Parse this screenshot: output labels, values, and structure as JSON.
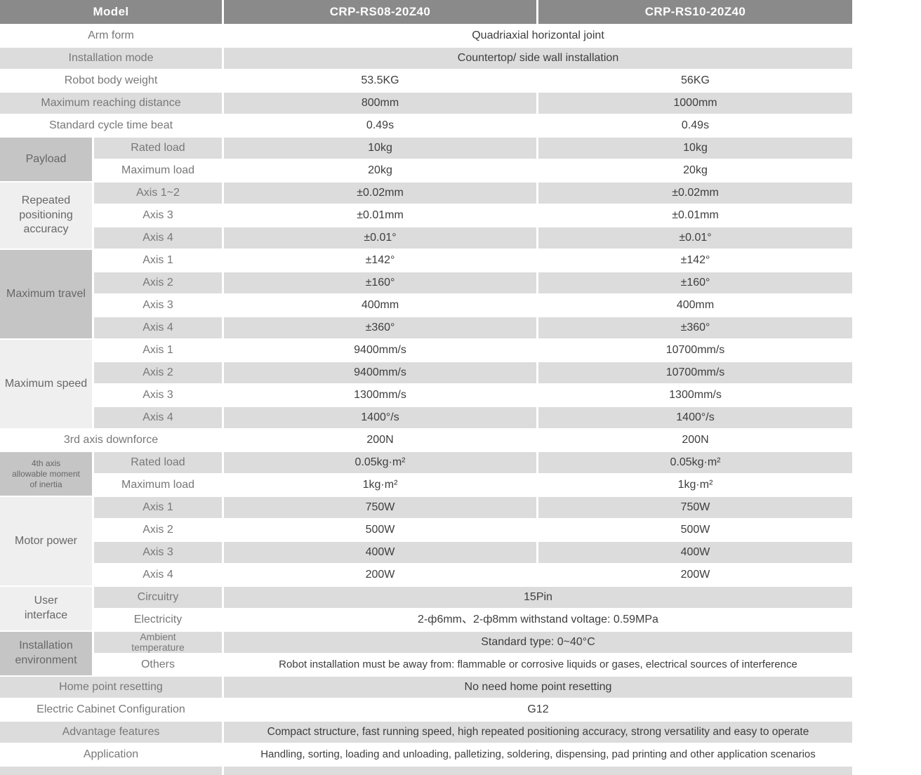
{
  "header": {
    "model": "Model",
    "models": [
      "CRP-RS08-20Z40",
      "CRP-RS10-20Z40"
    ]
  },
  "colors": {
    "header_bg": "#8a8a8a",
    "header_text": "#ffffff",
    "stripe_gray": "#dcdcdc",
    "group_dark": "#c5c5c5",
    "group_light": "#efefef",
    "label_text": "#787878",
    "value_text": "#3e3e3e"
  },
  "groups": [
    {
      "label": "Payload"
    },
    {
      "label": "Repeated positioning accuracy",
      "lines": [
        "Repeated",
        "positioning",
        "accuracy"
      ]
    },
    {
      "label": "Maximum travel"
    },
    {
      "label": "Maximum speed"
    },
    {
      "label": "4th axis allowable moment of inertia",
      "lines": [
        "4th axis",
        "allowable moment",
        "of inertia"
      ]
    },
    {
      "label": "Motor power"
    },
    {
      "label": "User interface",
      "lines": [
        "User",
        "interface"
      ]
    },
    {
      "label": "Installation environment",
      "lines": [
        "Installation",
        "environment"
      ]
    }
  ],
  "rows": [
    {
      "label": "Arm form",
      "span": "Quadriaxial horizontal joint"
    },
    {
      "label": "Installation mode",
      "span": "Countertop/ side wall installation"
    },
    {
      "label": "Robot body weight",
      "v1": "53.5KG",
      "v2": "56KG"
    },
    {
      "label": "Maximum reaching distance",
      "v1": "800mm",
      "v2": "1000mm"
    },
    {
      "label": "Standard cycle time beat",
      "v1": "0.49s",
      "v2": "0.49s"
    },
    {
      "sub": "Rated load",
      "v1": "10kg",
      "v2": "10kg"
    },
    {
      "sub": "Maximum load",
      "v1": "20kg",
      "v2": "20kg"
    },
    {
      "sub": "Axis 1~2",
      "v1": "±0.02mm",
      "v2": "±0.02mm"
    },
    {
      "sub": "Axis 3",
      "v1": "±0.01mm",
      "v2": "±0.01mm"
    },
    {
      "sub": "Axis 4",
      "v1": "±0.01°",
      "v2": "±0.01°"
    },
    {
      "sub": "Axis 1",
      "v1": "±142°",
      "v2": "±142°"
    },
    {
      "sub": "Axis 2",
      "v1": "±160°",
      "v2": "±160°"
    },
    {
      "sub": "Axis 3",
      "v1": "400mm",
      "v2": "400mm"
    },
    {
      "sub": "Axis 4",
      "v1": "±360°",
      "v2": "±360°"
    },
    {
      "sub": "Axis 1",
      "v1": "9400mm/s",
      "v2": "10700mm/s"
    },
    {
      "sub": "Axis 2",
      "v1": "9400mm/s",
      "v2": "10700mm/s"
    },
    {
      "sub": "Axis 3",
      "v1": "1300mm/s",
      "v2": "1300mm/s"
    },
    {
      "sub": "Axis 4",
      "v1": "1400°/s",
      "v2": "1400°/s"
    },
    {
      "label": "3rd axis downforce",
      "v1": "200N",
      "v2": "200N"
    },
    {
      "sub": "Rated load",
      "v1": "0.05kg·m²",
      "v2": "0.05kg·m²"
    },
    {
      "sub": "Maximum load",
      "v1": "1kg·m²",
      "v2": "1kg·m²"
    },
    {
      "sub": "Axis 1",
      "v1": "750W",
      "v2": "750W"
    },
    {
      "sub": "Axis 2",
      "v1": "500W",
      "v2": "500W"
    },
    {
      "sub": "Axis 3",
      "v1": "400W",
      "v2": "400W"
    },
    {
      "sub": "Axis 4",
      "v1": "200W",
      "v2": "200W"
    },
    {
      "sub": "Circuitry",
      "span": "15Pin"
    },
    {
      "sub": "Electricity",
      "span": "2-ф6mm、2-ф8mm withstand voltage: 0.59MPa"
    },
    {
      "sub": "Ambient temperature",
      "sub_lines": [
        "Ambient",
        "temperature"
      ],
      "span": "Standard type:  0~40°C"
    },
    {
      "sub": "Others",
      "span": "Robot installation must be away from: flammable or corrosive liquids or gases, electrical sources of interference"
    },
    {
      "label": "Home point resetting",
      "span": "No need home point resetting"
    },
    {
      "label": "Electric Cabinet Configuration",
      "span": "G12"
    },
    {
      "label": "Advantage features",
      "span": "Compact structure, fast running speed, high repeated positioning accuracy, strong versatility and easy to operate"
    },
    {
      "label": "Application",
      "span": "Handling, sorting, loading and unloading, palletizing, soldering, dispensing, pad printing and other application scenarios"
    }
  ]
}
